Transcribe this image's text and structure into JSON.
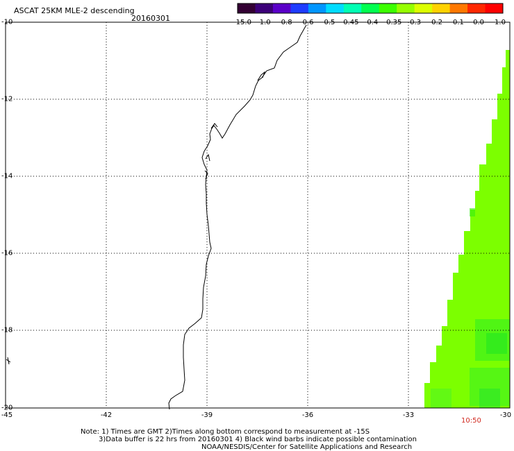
{
  "header": {
    "title": "ASCAT 25KM MLE-2 descending",
    "date": "20160301"
  },
  "colorbar": {
    "colors": [
      "#330033",
      "#3c0078",
      "#5a00c8",
      "#1e3cff",
      "#0096ff",
      "#00dcff",
      "#00ffb4",
      "#00ff50",
      "#3cff00",
      "#96ff00",
      "#dcff00",
      "#ffd200",
      "#ff7800",
      "#ff2800",
      "#ff0000"
    ],
    "ticks": [
      "-15.0",
      "-1.0",
      "-0.8",
      "-0.6",
      "-0.5",
      "-0.45",
      "-0.4",
      "-0.35",
      "-0.3",
      "-0.2",
      "-0.1",
      "0.0",
      "1.0"
    ]
  },
  "map": {
    "latitude_labels": [
      "-10",
      "-12",
      "-14",
      "-16",
      "-18",
      "-20"
    ],
    "longitude_labels": [
      "-45",
      "-42",
      "-39",
      "-36",
      "-33",
      "-30"
    ],
    "swath_time": "10:50",
    "swath_color": "#7cff00"
  },
  "notes": {
    "line1": "Note: 1) Times are GMT 2)Times along bottom correspond to measurement at -15S",
    "line2": "3)Data buffer is 22 hrs from 20160301 4) Black wind barbs indicate possible contamination",
    "line3": "NOAA/NESDIS/Center for Satellite Applications and Research"
  }
}
